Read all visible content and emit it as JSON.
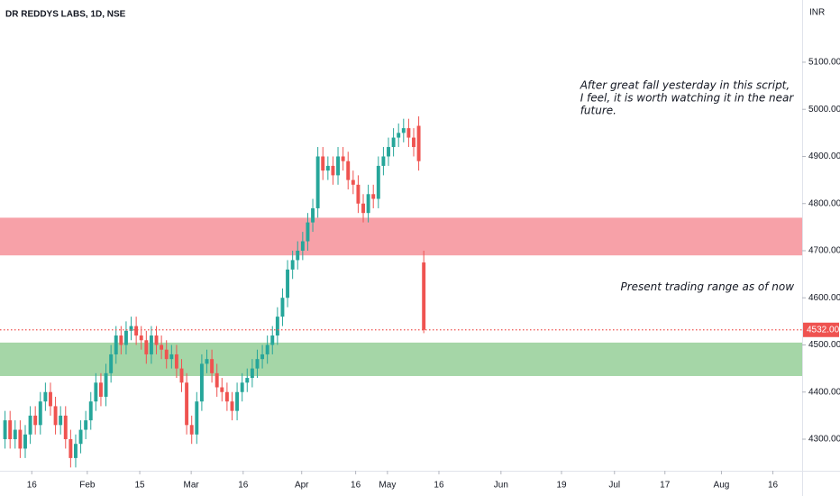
{
  "chart_data": {
    "type": "candlestick",
    "title": "DR REDDYS LABS, 1D, NSE",
    "y_axis_label": "INR",
    "up_color": "#26a69a",
    "down_color": "#ef5350",
    "open": [
      4300,
      4340,
      4300,
      4320,
      4280,
      4310,
      4350,
      4330,
      4380,
      4400,
      4370,
      4330,
      4350,
      4300,
      4260,
      4290,
      4320,
      4340,
      4380,
      4420,
      4390,
      4440,
      4480,
      4520,
      4500,
      4530,
      4540,
      4520,
      4510,
      4480,
      4520,
      4500,
      4490,
      4470,
      4480,
      4450,
      4420,
      4330,
      4310,
      4380,
      4460,
      4470,
      4440,
      4410,
      4400,
      4380,
      4360,
      4400,
      4420,
      4430,
      4450,
      4470,
      4480,
      4500,
      4520,
      4560,
      4600,
      4660,
      4680,
      4700,
      4720,
      4760,
      4790,
      4900,
      4870,
      4880,
      4860,
      4900,
      4890,
      4850,
      4840,
      4800,
      4780,
      4820,
      4810,
      4880,
      4900,
      4920,
      4940,
      4950,
      4960,
      4940,
      4965,
      4675
    ],
    "high": [
      4360,
      4360,
      4340,
      4340,
      4330,
      4370,
      4370,
      4400,
      4420,
      4420,
      4390,
      4370,
      4370,
      4320,
      4310,
      4340,
      4360,
      4400,
      4440,
      4440,
      4460,
      4500,
      4540,
      4540,
      4550,
      4560,
      4560,
      4540,
      4530,
      4540,
      4540,
      4520,
      4510,
      4500,
      4500,
      4470,
      4440,
      4350,
      4400,
      4480,
      4490,
      4490,
      4460,
      4430,
      4420,
      4400,
      4420,
      4440,
      4450,
      4470,
      4490,
      4500,
      4520,
      4540,
      4580,
      4620,
      4680,
      4700,
      4720,
      4740,
      4780,
      4810,
      4920,
      4920,
      4900,
      4900,
      4920,
      4920,
      4910,
      4870,
      4860,
      4820,
      4840,
      4840,
      4900,
      4920,
      4940,
      4960,
      4970,
      4980,
      4980,
      4960,
      4985,
      4700
    ],
    "low": [
      4280,
      4280,
      4280,
      4260,
      4260,
      4290,
      4310,
      4310,
      4360,
      4350,
      4310,
      4310,
      4280,
      4240,
      4240,
      4270,
      4300,
      4320,
      4360,
      4370,
      4370,
      4420,
      4460,
      4480,
      4480,
      4510,
      4500,
      4490,
      4460,
      4460,
      4480,
      4470,
      4450,
      4450,
      4430,
      4400,
      4310,
      4290,
      4290,
      4360,
      4440,
      4420,
      4390,
      4380,
      4360,
      4340,
      4340,
      4380,
      4400,
      4410,
      4430,
      4450,
      4460,
      4480,
      4500,
      4540,
      4580,
      4640,
      4660,
      4680,
      4700,
      4740,
      4770,
      4850,
      4850,
      4840,
      4840,
      4870,
      4830,
      4820,
      4780,
      4760,
      4760,
      4790,
      4790,
      4860,
      4880,
      4900,
      4920,
      4930,
      4920,
      4900,
      4870,
      4525
    ],
    "close": [
      4340,
      4300,
      4320,
      4280,
      4310,
      4350,
      4330,
      4380,
      4400,
      4370,
      4330,
      4350,
      4300,
      4260,
      4290,
      4320,
      4340,
      4380,
      4420,
      4390,
      4440,
      4480,
      4520,
      4500,
      4530,
      4540,
      4520,
      4510,
      4480,
      4520,
      4500,
      4490,
      4470,
      4480,
      4450,
      4420,
      4330,
      4310,
      4380,
      4460,
      4470,
      4440,
      4410,
      4400,
      4380,
      4360,
      4400,
      4420,
      4430,
      4450,
      4470,
      4480,
      4500,
      4520,
      4560,
      4600,
      4660,
      4680,
      4700,
      4720,
      4760,
      4790,
      4900,
      4870,
      4880,
      4860,
      4900,
      4890,
      4850,
      4840,
      4800,
      4780,
      4820,
      4810,
      4880,
      4900,
      4920,
      4940,
      4950,
      4960,
      4940,
      4920,
      4890,
      4532
    ],
    "xlim": [
      -1,
      158
    ],
    "xticks": [
      {
        "value": 5.3,
        "label": "16"
      },
      {
        "value": 16.3,
        "label": "Feb"
      },
      {
        "value": 26.7,
        "label": "15"
      },
      {
        "value": 36.9,
        "label": "Mar"
      },
      {
        "value": 47.2,
        "label": "16"
      },
      {
        "value": 58.8,
        "label": "Apr"
      },
      {
        "value": 69.5,
        "label": "16"
      },
      {
        "value": 75.8,
        "label": "May"
      },
      {
        "value": 86,
        "label": "16"
      },
      {
        "value": 98.3,
        "label": "Jun"
      },
      {
        "value": 110.3,
        "label": "19"
      },
      {
        "value": 120.8,
        "label": "Jul"
      },
      {
        "value": 130.8,
        "label": "17"
      },
      {
        "value": 142,
        "label": "Aug"
      },
      {
        "value": 152.2,
        "label": "16"
      }
    ],
    "ylim": [
      4233,
      5232
    ],
    "yticks": [
      {
        "value": 4300,
        "label": "4300.00"
      },
      {
        "value": 4400,
        "label": "4400.00"
      },
      {
        "value": 4500,
        "label": "4500.00"
      },
      {
        "value": 4600,
        "label": "4600.00"
      },
      {
        "value": 4700,
        "label": "4700.00"
      },
      {
        "value": 4800,
        "label": "4800.00"
      },
      {
        "value": 4900,
        "label": "4900.00"
      },
      {
        "value": 5000,
        "label": "5000.00"
      },
      {
        "value": 5100,
        "label": "5100.00"
      }
    ],
    "zones": [
      {
        "low": 4690,
        "high": 4770,
        "color": "#f7a1a8"
      },
      {
        "low": 4434,
        "high": 4505,
        "color": "#a5d6a7"
      }
    ],
    "price_line": {
      "value": 4532,
      "label": "4532.00",
      "color": "#ef5350"
    },
    "annotations": [
      {
        "lines": [
          "After great fall yesterday in this script,",
          "I feel, it is worth watching it in the near",
          "future."
        ],
        "x": 114,
        "y": 5050
      },
      {
        "lines": [
          "Present trading range as of now"
        ],
        "x": 122,
        "y": 4622
      }
    ]
  }
}
